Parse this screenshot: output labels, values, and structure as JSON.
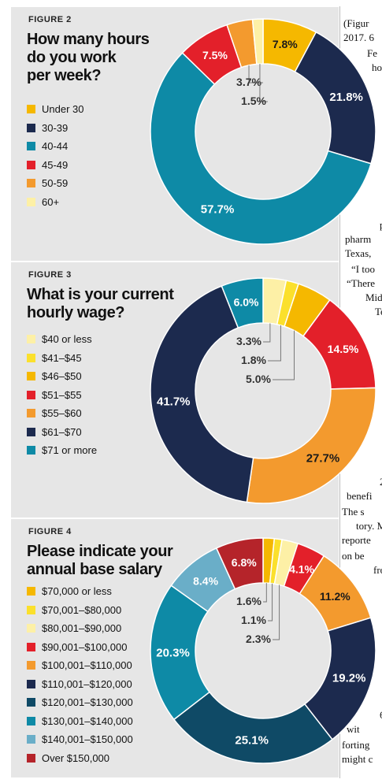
{
  "figures": [
    {
      "label": "FIGURE 2",
      "title_lines": [
        "How many hours",
        "do you work",
        "per week?"
      ],
      "legend": [
        {
          "text": "Under 30",
          "color": "#f5b800"
        },
        {
          "text": "30-39",
          "color": "#1c2a4e"
        },
        {
          "text": "40-44",
          "color": "#0e8aa6"
        },
        {
          "text": "45-49",
          "color": "#e3202a"
        },
        {
          "text": "50-59",
          "color": "#f39a2e"
        },
        {
          "text": "60+",
          "color": "#fdf0a6"
        }
      ]
    },
    {
      "label": "FIGURE 3",
      "title_lines": [
        "What is your current",
        "hourly wage?"
      ],
      "legend": [
        {
          "text": "$40 or less",
          "color": "#fdf0a6"
        },
        {
          "text": "$41–$45",
          "color": "#fbe02c"
        },
        {
          "text": "$46–$50",
          "color": "#f5b800"
        },
        {
          "text": "$51–$55",
          "color": "#e3202a"
        },
        {
          "text": "$55–$60",
          "color": "#f39a2e"
        },
        {
          "text": "$61–$70",
          "color": "#1c2a4e"
        },
        {
          "text": "$71 or more",
          "color": "#0e8aa6"
        }
      ]
    },
    {
      "label": "FIGURE 4",
      "title_lines": [
        "Please indicate your",
        "annual base salary"
      ],
      "legend": [
        {
          "text": "$70,000 or less",
          "color": "#f5b800"
        },
        {
          "text": "$70,001–$80,000",
          "color": "#fbe02c"
        },
        {
          "text": "$80,001–$90,000",
          "color": "#fdf0a6"
        },
        {
          "text": "$90,001–$100,000",
          "color": "#e3202a"
        },
        {
          "text": "$100,001–$110,000",
          "color": "#f39a2e"
        },
        {
          "text": "$110,001–$120,000",
          "color": "#1c2a4e"
        },
        {
          "text": "$120,001–$130,000",
          "color": "#0f4a66"
        },
        {
          "text": "$130,001–$140,000",
          "color": "#0e8aa6"
        },
        {
          "text": "$140,001–$150,000",
          "color": "#6aaec8"
        },
        {
          "text": "Over $150,000",
          "color": "#b5242a"
        }
      ]
    }
  ],
  "chart_data": [
    {
      "type": "pie",
      "title": "How many hours do you work per week?",
      "slices": [
        {
          "name": "Under 30",
          "value": 7.8,
          "label": "7.8%"
        },
        {
          "name": "30-39",
          "value": 21.8,
          "label": "21.8%"
        },
        {
          "name": "40-44",
          "value": 57.7,
          "label": "57.7%"
        },
        {
          "name": "45-49",
          "value": 7.5,
          "label": "7.5%"
        },
        {
          "name": "50-59",
          "value": 3.7,
          "label": "3.7%"
        },
        {
          "name": "60+",
          "value": 1.5,
          "label": "1.5%"
        }
      ]
    },
    {
      "type": "pie",
      "title": "What is your current hourly wage?",
      "slices": [
        {
          "name": "$40 or less",
          "value": 3.3,
          "label": "3.3%"
        },
        {
          "name": "$41–$45",
          "value": 1.8,
          "label": "1.8%"
        },
        {
          "name": "$46–$50",
          "value": 5.0,
          "label": "5.0%"
        },
        {
          "name": "$51–$55",
          "value": 14.5,
          "label": "14.5%"
        },
        {
          "name": "$55–$60",
          "value": 27.7,
          "label": "27.7%"
        },
        {
          "name": "$61–$70",
          "value": 41.7,
          "label": "41.7%"
        },
        {
          "name": "$71 or more",
          "value": 6.0,
          "label": "6.0%"
        }
      ]
    },
    {
      "type": "pie",
      "title": "Please indicate your annual base salary",
      "slices": [
        {
          "name": "$70,000 or less",
          "value": 1.6,
          "label": "1.6%"
        },
        {
          "name": "$70,001–$80,000",
          "value": 1.1,
          "label": "1.1%"
        },
        {
          "name": "$80,001–$90,000",
          "value": 2.3,
          "label": "2.3%"
        },
        {
          "name": "$90,001–$100,000",
          "value": 4.1,
          "label": "4.1%"
        },
        {
          "name": "$100,001–$110,000",
          "value": 11.2,
          "label": "11.2%"
        },
        {
          "name": "$110,001–$120,000",
          "value": 19.2,
          "label": "19.2%"
        },
        {
          "name": "$120,001–$130,000",
          "value": 25.1,
          "label": "25.1%"
        },
        {
          "name": "$130,001–$140,000",
          "value": 20.3,
          "label": "20.3%"
        },
        {
          "name": "$140,001–$150,000",
          "value": 8.4,
          "label": "8.4%"
        },
        {
          "name": "Over $150,000",
          "value": 6.8,
          "label": "6.8%"
        }
      ]
    }
  ],
  "side_text": [
    "(Figur",
    "2017. 6",
    "Fe",
    "ho",
    "w",
    "par",
    "pharm",
    "Texas, ",
    "“I too",
    "“There",
    "Mid",
    "Te",
    "a",
    "201",
    "benefi",
    "The s",
    "tory. M",
    "reporte",
    "on be",
    "fro",
    "e",
    "6",
    "wit",
    "forting",
    "might c"
  ]
}
